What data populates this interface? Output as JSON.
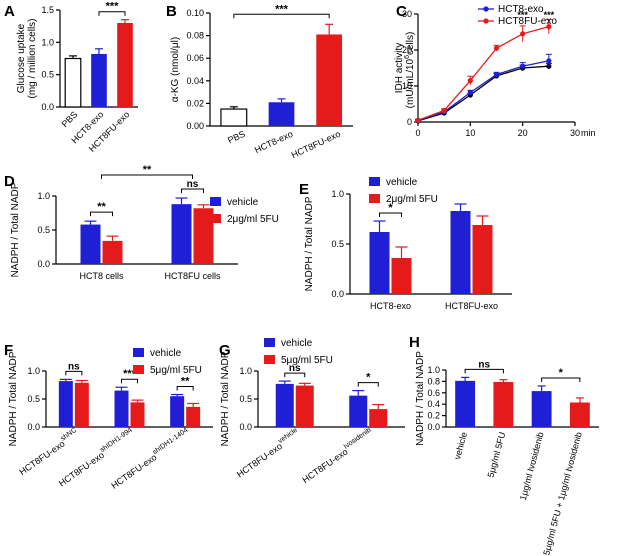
{
  "colors": {
    "blue": "#1f1fd6",
    "red": "#e51b1b",
    "black": "#000000",
    "white": "#ffffff"
  },
  "chart_data": [
    {
      "id": "A",
      "panel_label": "A",
      "type": "bar",
      "ylabel_lines": [
        "Glucose uptake",
        "(mg / million cells)"
      ],
      "ylim": [
        0,
        1.5
      ],
      "yticks": [
        "0.0",
        "0.5",
        "1.0",
        "1.5"
      ],
      "ytick_values": [
        0,
        0.5,
        1.0,
        1.5
      ],
      "categories": [
        "PBS",
        "HCT8-exo",
        "HCT8FU-exo"
      ],
      "values": [
        0.75,
        0.82,
        1.3
      ],
      "errors": [
        0.04,
        0.08,
        0.05
      ],
      "bar_colors": [
        "white",
        "blue",
        "red"
      ],
      "significance": [
        {
          "from": 1,
          "to": 2,
          "label": "***"
        }
      ]
    },
    {
      "id": "B",
      "panel_label": "B",
      "type": "bar",
      "ylabel": "α-KG (nmol/μl)",
      "ylim": [
        0,
        0.1
      ],
      "yticks": [
        "0.00",
        "0.02",
        "0.04",
        "0.06",
        "0.08",
        "0.10"
      ],
      "ytick_values": [
        0,
        0.02,
        0.04,
        0.06,
        0.08,
        0.1
      ],
      "categories": [
        "PBS",
        "HCT8-exo",
        "HCT8FU-exo"
      ],
      "values": [
        0.015,
        0.021,
        0.081
      ],
      "errors": [
        0.002,
        0.003,
        0.009
      ],
      "bar_colors": [
        "white",
        "blue",
        "red"
      ],
      "significance": [
        {
          "from": 0,
          "to": 2,
          "label": "***"
        }
      ]
    },
    {
      "id": "C",
      "panel_label": "C",
      "type": "line",
      "ylabel_lines": [
        "IDH activity",
        "(mU/mL/10",
        "6",
        "cells)"
      ],
      "xlabel": "min",
      "x": [
        0,
        5,
        10,
        15,
        20,
        25
      ],
      "xticks": [
        "0",
        "10",
        "20",
        "30"
      ],
      "xtick_values": [
        0,
        10,
        20,
        30
      ],
      "ylim": [
        0,
        30
      ],
      "yticks": [
        "0",
        "10",
        "20",
        "30"
      ],
      "ytick_values": [
        0,
        10,
        20,
        30
      ],
      "series": [
        {
          "name": "PBS",
          "color": "black",
          "values": [
            0.3,
            2.5,
            7.5,
            12.8,
            15,
            15.5
          ],
          "errors": [
            0.2,
            0.4,
            0.5,
            0.6,
            0.8,
            0.8
          ]
        },
        {
          "name": "HCT8-exo",
          "color": "blue",
          "values": [
            0.4,
            2.8,
            8.2,
            13.2,
            15.5,
            17
          ],
          "errors": [
            0.2,
            0.4,
            0.6,
            0.6,
            1.0,
            1.8
          ]
        },
        {
          "name": "HCT8FU-exo",
          "color": "red",
          "values": [
            0.5,
            3.2,
            11.5,
            20.5,
            24.5,
            26.5
          ],
          "errors": [
            0.3,
            0.5,
            1.2,
            0.8,
            2.2,
            2.0
          ]
        }
      ],
      "annotations": [
        {
          "x": 20,
          "label": "***"
        },
        {
          "x": 25,
          "label": "***"
        }
      ]
    },
    {
      "id": "D",
      "panel_label": "D",
      "type": "bar",
      "ylabel": "NADPH / Total NADP",
      "ylim": [
        0,
        1.0
      ],
      "yticks": [
        "0.0",
        "0.5",
        "1.0"
      ],
      "ytick_values": [
        0,
        0.5,
        1.0
      ],
      "groups": [
        "HCT8 cells",
        "HCT8FU cells"
      ],
      "series": [
        {
          "name": "vehicle",
          "color": "blue",
          "values": [
            0.58,
            0.88
          ],
          "errors": [
            0.05,
            0.09
          ]
        },
        {
          "name": "2μg/ml 5FU",
          "color": "red",
          "values": [
            0.34,
            0.82
          ],
          "errors": [
            0.07,
            0.05
          ]
        }
      ],
      "significance": [
        {
          "level": "within",
          "group": 0,
          "label": "**"
        },
        {
          "level": "between",
          "from": 0,
          "to": 1,
          "label": "**"
        },
        {
          "level": "within",
          "group": 1,
          "label": "ns"
        }
      ]
    },
    {
      "id": "E",
      "panel_label": "E",
      "type": "bar",
      "ylabel": "NADPH / Total NADP",
      "ylim": [
        0,
        1.0
      ],
      "yticks": [
        "0.0",
        "0.5",
        "1.0"
      ],
      "ytick_values": [
        0,
        0.5,
        1.0
      ],
      "groups": [
        "HCT8-exo",
        "HCT8FU-exo"
      ],
      "series": [
        {
          "name": "vehicle",
          "color": "blue",
          "values": [
            0.62,
            0.83
          ],
          "errors": [
            0.11,
            0.07
          ]
        },
        {
          "name": "2μg/ml 5FU",
          "color": "red",
          "values": [
            0.36,
            0.69
          ],
          "errors": [
            0.11,
            0.09
          ]
        }
      ],
      "significance": [
        {
          "level": "within",
          "group": 0,
          "label": "*"
        }
      ]
    },
    {
      "id": "F",
      "panel_label": "F",
      "type": "bar",
      "ylabel": "NADPH / Total NADP",
      "ylim": [
        0,
        1.0
      ],
      "yticks": [
        "0.0",
        "0.5",
        "1.0"
      ],
      "ytick_values": [
        0,
        0.5,
        1.0
      ],
      "groups": [
        "HCT8FU-exo",
        "HCT8FU-exo",
        "HCT8FU-exo"
      ],
      "group_superscripts": [
        "shNC",
        "shIDH1-994",
        "shIDH1-1404"
      ],
      "series": [
        {
          "name": "vehicle",
          "color": "blue",
          "values": [
            0.82,
            0.65,
            0.55
          ],
          "errors": [
            0.03,
            0.06,
            0.03
          ]
        },
        {
          "name": "5μg/ml 5FU",
          "color": "red",
          "values": [
            0.79,
            0.44,
            0.36
          ],
          "errors": [
            0.04,
            0.04,
            0.06
          ]
        }
      ],
      "significance": [
        {
          "level": "within",
          "group": 0,
          "label": "ns"
        },
        {
          "level": "within",
          "group": 1,
          "label": "***"
        },
        {
          "level": "within",
          "group": 2,
          "label": "**"
        }
      ]
    },
    {
      "id": "G",
      "panel_label": "G",
      "type": "bar",
      "ylabel": "NADPH / Total NADP",
      "ylim": [
        0,
        1.0
      ],
      "yticks": [
        "0.0",
        "0.5",
        "1.0"
      ],
      "ytick_values": [
        0,
        0.5,
        1.0
      ],
      "groups": [
        "HCT8FU-exo",
        "HCT8FU-exo"
      ],
      "group_superscripts": [
        "vehicle",
        "Ivosidenib"
      ],
      "series": [
        {
          "name": "vehicle",
          "color": "blue",
          "values": [
            0.77,
            0.56
          ],
          "errors": [
            0.05,
            0.09
          ]
        },
        {
          "name": "5μg/ml 5FU",
          "color": "red",
          "values": [
            0.74,
            0.32
          ],
          "errors": [
            0.04,
            0.08
          ]
        }
      ],
      "significance": [
        {
          "level": "within",
          "group": 0,
          "label": "ns"
        },
        {
          "level": "within",
          "group": 1,
          "label": "*"
        }
      ]
    },
    {
      "id": "H",
      "panel_label": "H",
      "type": "bar",
      "ylabel": "NADPH / Total NADP",
      "ylim": [
        0,
        1.0
      ],
      "yticks": [
        "0.0",
        "0.2",
        "0.4",
        "0.6",
        "0.8",
        "1.0"
      ],
      "ytick_values": [
        0,
        0.2,
        0.4,
        0.6,
        0.8,
        1.0
      ],
      "categories": [
        "vehicle",
        "5μg/ml 5FU",
        "1μg/ml Ivosidenib",
        "5μg/ml 5FU + 1μg/ml Ivosidenib"
      ],
      "values": [
        0.81,
        0.79,
        0.63,
        0.43
      ],
      "errors": [
        0.06,
        0.04,
        0.09,
        0.08
      ],
      "bar_colors": [
        "blue",
        "red",
        "blue",
        "red"
      ],
      "significance": [
        {
          "from": 0,
          "to": 1,
          "label": "ns"
        },
        {
          "from": 2,
          "to": 3,
          "label": "*"
        }
      ]
    }
  ]
}
